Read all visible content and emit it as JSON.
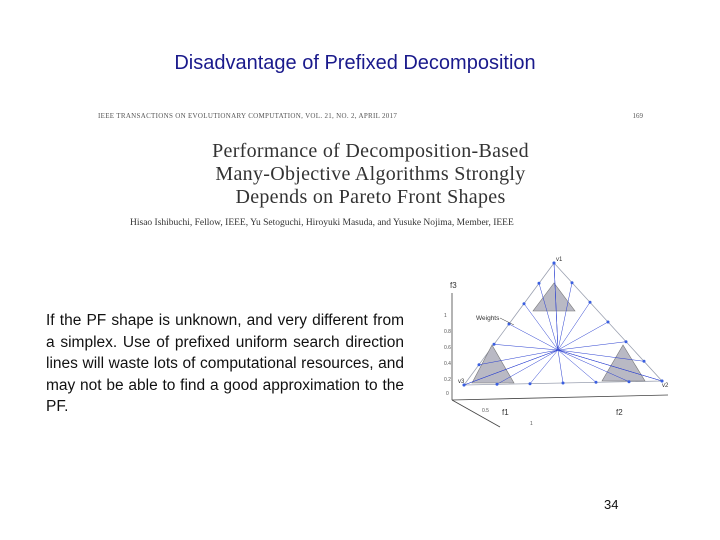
{
  "slide": {
    "title": "Disadvantage of Prefixed Decomposition",
    "body": "If the PF shape is unknown,  and very different from a simplex. Use of prefixed uniform search direction lines will waste lots of computational resources, and may not be able to find a good approximation to the PF.",
    "page_number": "34"
  },
  "paper": {
    "journal": "IEEE TRANSACTIONS ON EVOLUTIONARY COMPUTATION, VOL. 21, NO. 2, APRIL 2017",
    "page": "169",
    "title_line1": "Performance of Decomposition-Based",
    "title_line2": "Many-Objective Algorithms Strongly",
    "title_line3": "Depends on Pareto Front Shapes",
    "authors": "Hisao Ishibuchi, Fellow, IEEE, Yu Setoguchi, Hiroyuki Masuda, and Yusuke Nojima, Member, IEEE"
  },
  "figure": {
    "f3_label": "f3",
    "f1_label": "f1",
    "f2_label": "f2",
    "weights_label": "Weights",
    "v1_label": "v1",
    "v2_label": "v2",
    "v3_label": "v3",
    "yticks": [
      "1",
      "0.8",
      "0.6",
      "0.4",
      "0.2",
      "0"
    ],
    "xtick_05": "0.5",
    "xtick_1": "1",
    "colors": {
      "triangle_fill": "#b9b9c4",
      "lines": "#2a3fd0",
      "points": "#3a5fe0"
    }
  }
}
